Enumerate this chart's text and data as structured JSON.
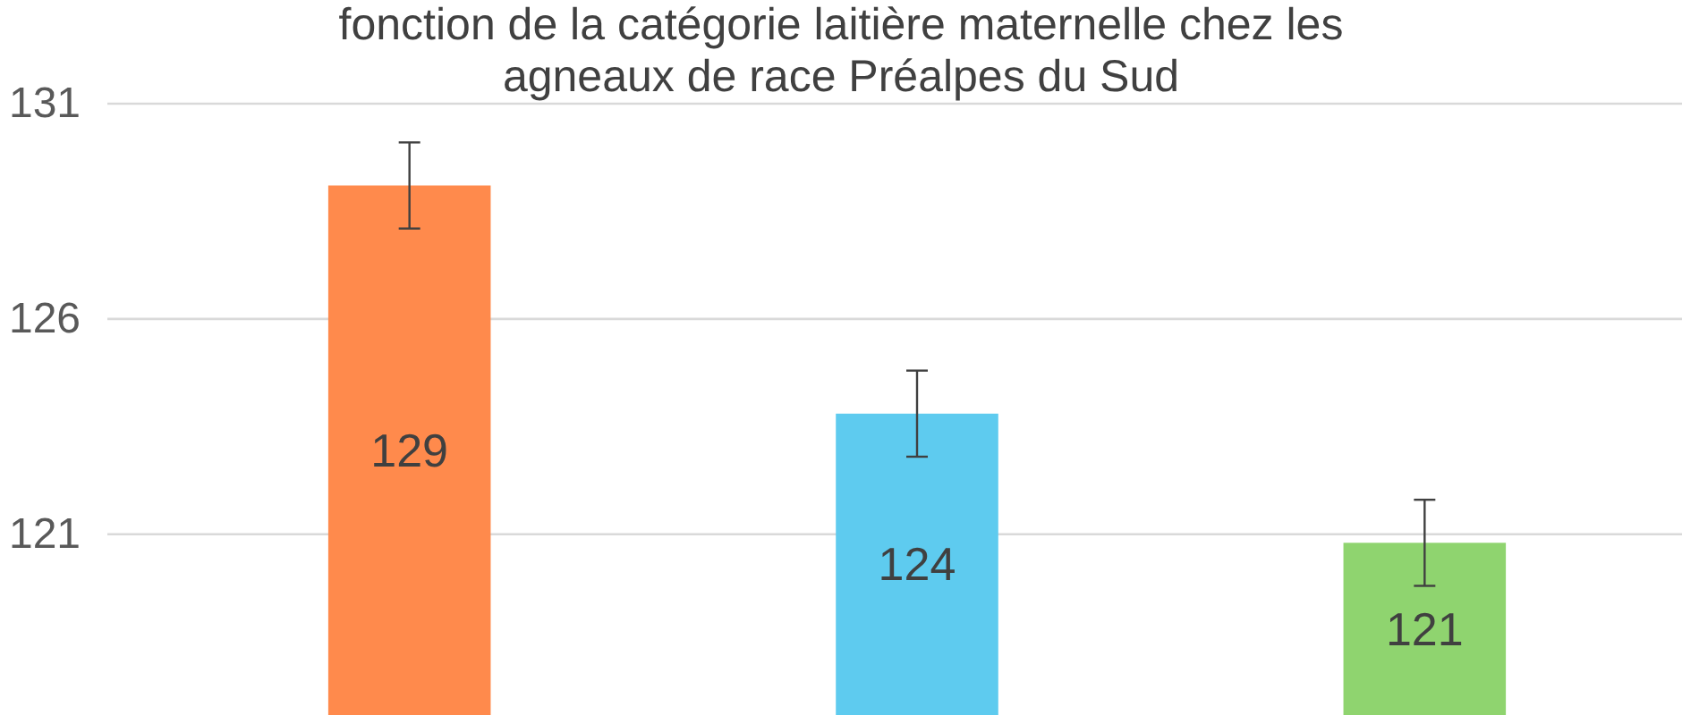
{
  "chart_data": {
    "type": "bar",
    "title": "fonction de la catégorie laitière maternelle chez les agneaux de race Préalpes du Sud",
    "categories": [
      null,
      null,
      null
    ],
    "values": [
      129.1,
      123.8,
      120.8
    ],
    "colors": [
      "#ff8a4c",
      "#5ecbef",
      "#8fd46f"
    ],
    "value_labels": [
      "129",
      "124",
      "121"
    ],
    "errors": [
      1,
      1,
      1
    ],
    "ylim": [
      116.8,
      131
    ],
    "yticks": [
      121,
      126,
      131
    ],
    "grid": "y"
  }
}
